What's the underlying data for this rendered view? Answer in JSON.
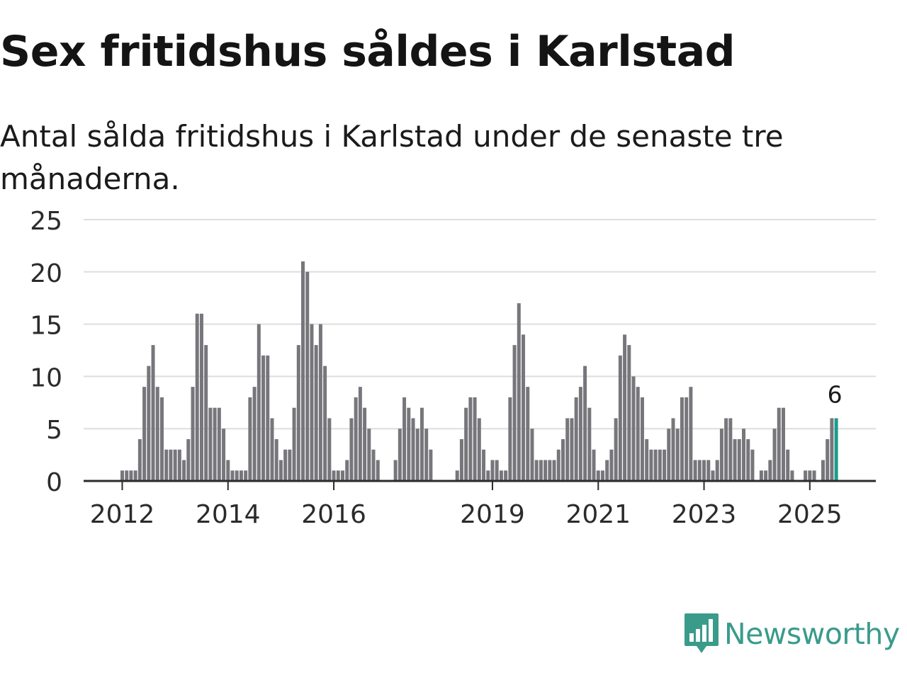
{
  "title": "Sex fritidshus såldes i Karlstad",
  "subtitle": "Antal sålda fritidshus i Karlstad under de senaste tre månaderna.",
  "brand": {
    "name": "Newsworthy",
    "color": "#3a9b8b",
    "icon": "bar-chart-speech-bubble-icon"
  },
  "chart_data": {
    "type": "bar",
    "xlabel": "",
    "ylabel": "",
    "ylim": [
      0,
      25
    ],
    "yticks": [
      0,
      5,
      10,
      15,
      20,
      25
    ],
    "grid": true,
    "xticks": [
      {
        "label": "2012",
        "index": 0
      },
      {
        "label": "2014",
        "index": 24
      },
      {
        "label": "2016",
        "index": 48
      },
      {
        "label": "2019",
        "index": 84
      },
      {
        "label": "2021",
        "index": 108
      },
      {
        "label": "2023",
        "index": 132
      },
      {
        "label": "2025",
        "index": 156
      }
    ],
    "start": "2012-01",
    "frequency": "monthly",
    "colors": {
      "bar": "#77767b",
      "highlight": "#1a9c8c",
      "grid": "#dedede",
      "axis": "#2b2b2b"
    },
    "highlight_label": "6",
    "values": [
      1,
      1,
      1,
      1,
      4,
      9,
      11,
      13,
      9,
      8,
      3,
      3,
      3,
      3,
      2,
      4,
      9,
      16,
      16,
      13,
      7,
      7,
      7,
      5,
      2,
      1,
      1,
      1,
      1,
      8,
      9,
      15,
      12,
      12,
      6,
      4,
      2,
      3,
      3,
      7,
      13,
      21,
      20,
      15,
      13,
      15,
      11,
      6,
      1,
      1,
      1,
      2,
      6,
      8,
      9,
      7,
      5,
      3,
      2,
      0,
      0,
      0,
      2,
      5,
      8,
      7,
      6,
      5,
      7,
      5,
      3,
      0,
      0,
      0,
      0,
      0,
      1,
      4,
      7,
      8,
      8,
      6,
      3,
      1,
      2,
      2,
      1,
      1,
      8,
      13,
      17,
      14,
      9,
      5,
      2,
      2,
      2,
      2,
      2,
      3,
      4,
      6,
      6,
      8,
      9,
      11,
      7,
      3,
      1,
      1,
      2,
      3,
      6,
      12,
      14,
      13,
      10,
      9,
      8,
      4,
      3,
      3,
      3,
      3,
      5,
      6,
      5,
      8,
      8,
      9,
      2,
      2,
      2,
      2,
      1,
      2,
      5,
      6,
      6,
      4,
      4,
      5,
      4,
      3,
      0,
      1,
      1,
      2,
      5,
      7,
      7,
      3,
      1,
      0,
      0,
      1,
      1,
      1,
      0,
      2,
      4,
      6,
      6
    ]
  }
}
